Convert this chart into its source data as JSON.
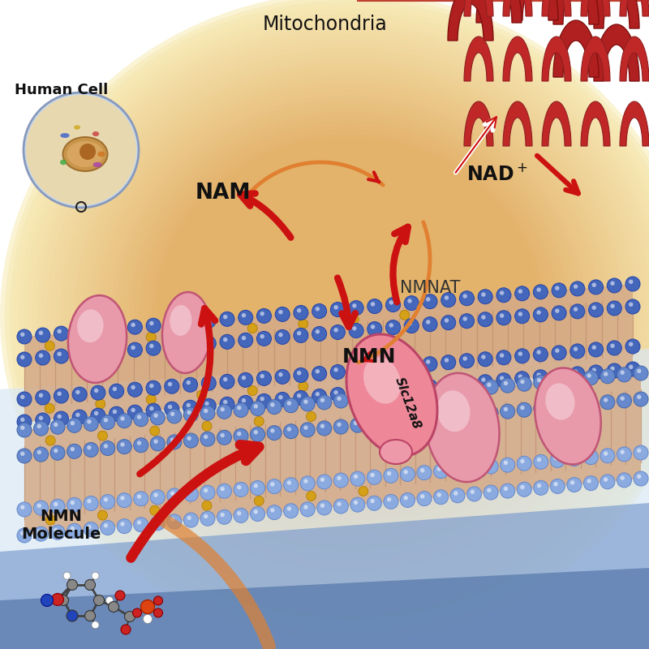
{
  "bg_color": "#FFFFFF",
  "warm_bg": "#F2DFA0",
  "mito_outer": "#D04030",
  "mito_inner": "#E87040",
  "mito_bg_light": "#F0A060",
  "membrane_blue": "#4466BB",
  "membrane_blue2": "#7799CC",
  "membrane_blue3": "#AACCEE",
  "lipid_tan": "#D4AA88",
  "lipid_line": "#C09070",
  "gold": "#D4A017",
  "protein_pink": "#E899AA",
  "protein_edge": "#C05575",
  "arrow_red": "#CC1111",
  "arrow_orange": "#E08030",
  "white_arrow": "#FFFFFF",
  "text_dark": "#111111",
  "label_mito": "Mitochondria",
  "label_cell": "Human Cell",
  "label_nam": "NAM",
  "label_nad": "NAD",
  "label_nmnat": "NMNAT",
  "label_nmn": "NMN",
  "label_slc": "Slc12a8",
  "label_mol": "NMN\nMolecule",
  "figsize": [
    8,
    8
  ],
  "dpi": 100
}
